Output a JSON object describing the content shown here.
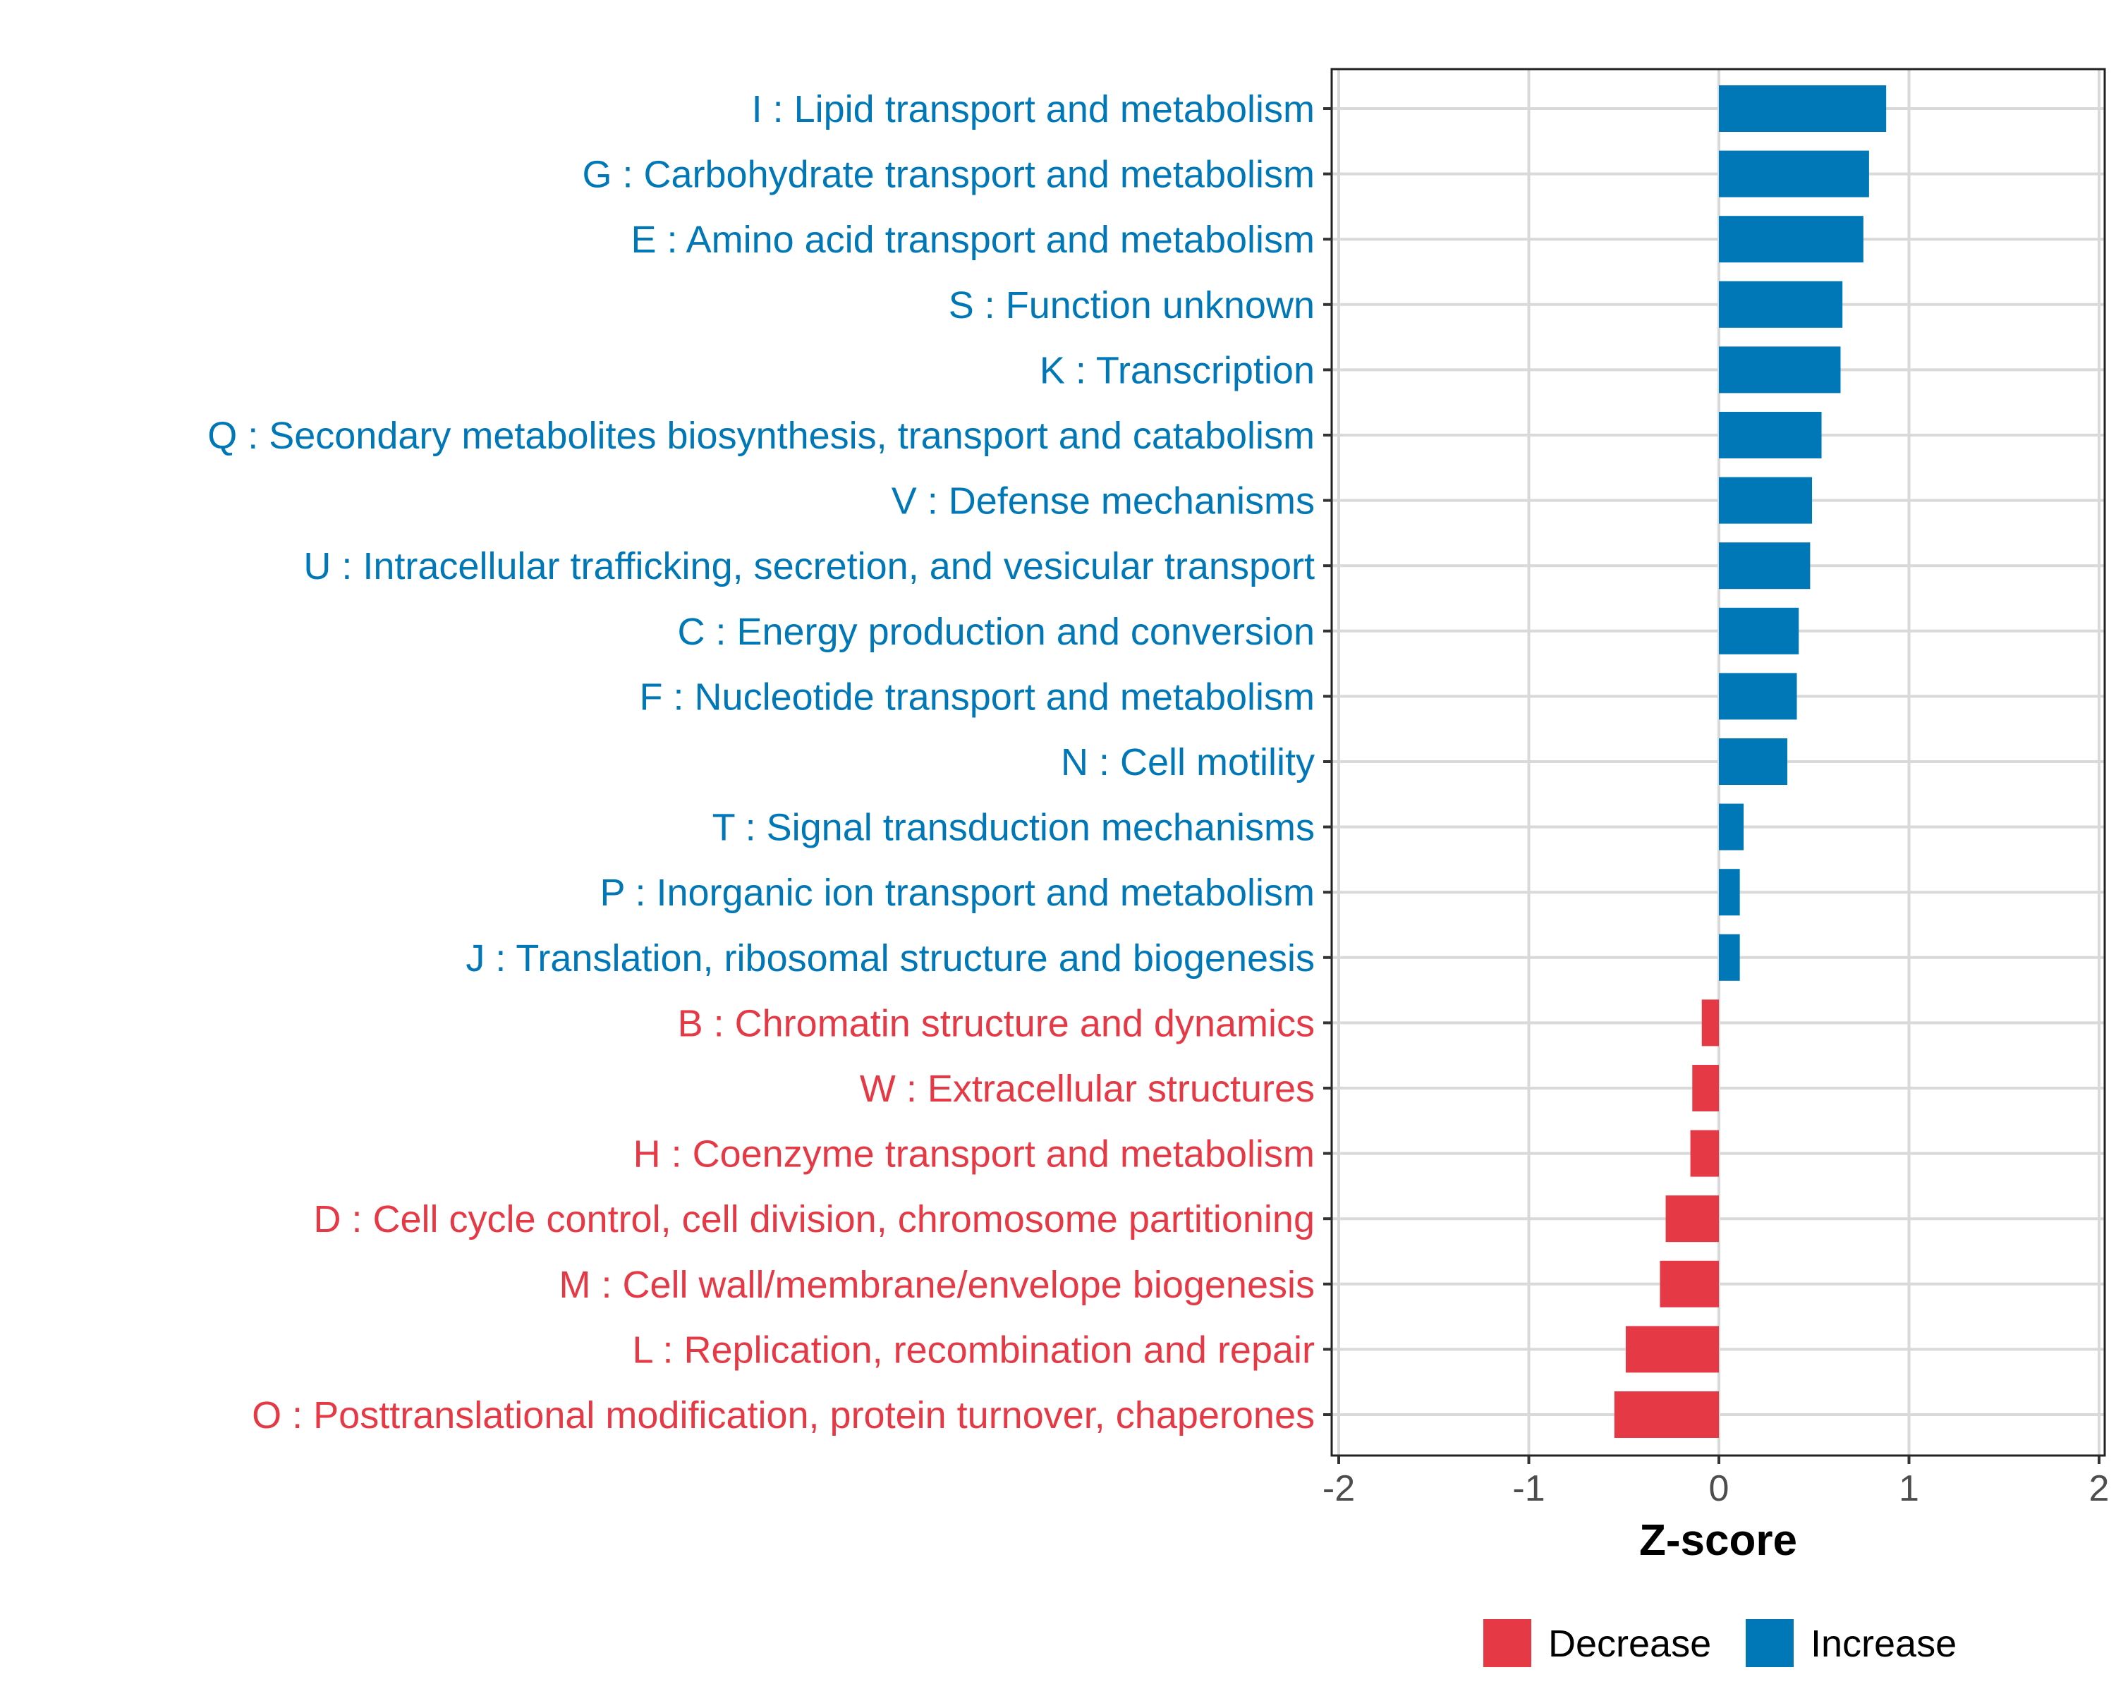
{
  "chart_data": {
    "type": "bar",
    "orientation": "horizontal",
    "title": "",
    "xlabel": "Z-score",
    "ylabel": "",
    "xlim": [
      -2,
      2
    ],
    "xticks": [
      -2,
      -1,
      0,
      1,
      2
    ],
    "xtick_labels": [
      "-2",
      "-1",
      "0",
      "1",
      "2"
    ],
    "grid": true,
    "legend_position": "bottom",
    "colors": {
      "Decrease": "#E63946",
      "Increase": "#0077B6"
    },
    "legend": [
      {
        "name": "Decrease",
        "color": "#E63946"
      },
      {
        "name": "Increase",
        "color": "#0077B6"
      }
    ],
    "categories": [
      "I : Lipid transport and metabolism",
      "G : Carbohydrate transport and metabolism",
      "E : Amino acid transport and metabolism",
      "S : Function unknown",
      "K : Transcription",
      "Q : Secondary metabolites biosynthesis, transport and catabolism",
      "V : Defense mechanisms",
      "U : Intracellular trafficking, secretion, and vesicular transport",
      "C : Energy production and conversion",
      "F : Nucleotide transport and metabolism",
      "N : Cell motility",
      "T : Signal transduction mechanisms",
      "P : Inorganic ion transport and metabolism",
      "J : Translation, ribosomal structure and biogenesis",
      "B : Chromatin structure and dynamics",
      "W : Extracellular structures",
      "H : Coenzyme transport and metabolism",
      "D : Cell cycle control, cell division, chromosome partitioning",
      "M : Cell wall/membrane/envelope biogenesis",
      "L : Replication, recombination and repair",
      "O : Posttranslational modification, protein turnover, chaperones"
    ],
    "values": [
      0.88,
      0.79,
      0.76,
      0.65,
      0.64,
      0.54,
      0.49,
      0.48,
      0.42,
      0.41,
      0.36,
      0.13,
      0.11,
      0.11,
      -0.09,
      -0.14,
      -0.15,
      -0.28,
      -0.31,
      -0.49,
      -0.55
    ],
    "groups": [
      "Increase",
      "Increase",
      "Increase",
      "Increase",
      "Increase",
      "Increase",
      "Increase",
      "Increase",
      "Increase",
      "Increase",
      "Increase",
      "Increase",
      "Increase",
      "Increase",
      "Decrease",
      "Decrease",
      "Decrease",
      "Decrease",
      "Decrease",
      "Decrease",
      "Decrease"
    ]
  }
}
